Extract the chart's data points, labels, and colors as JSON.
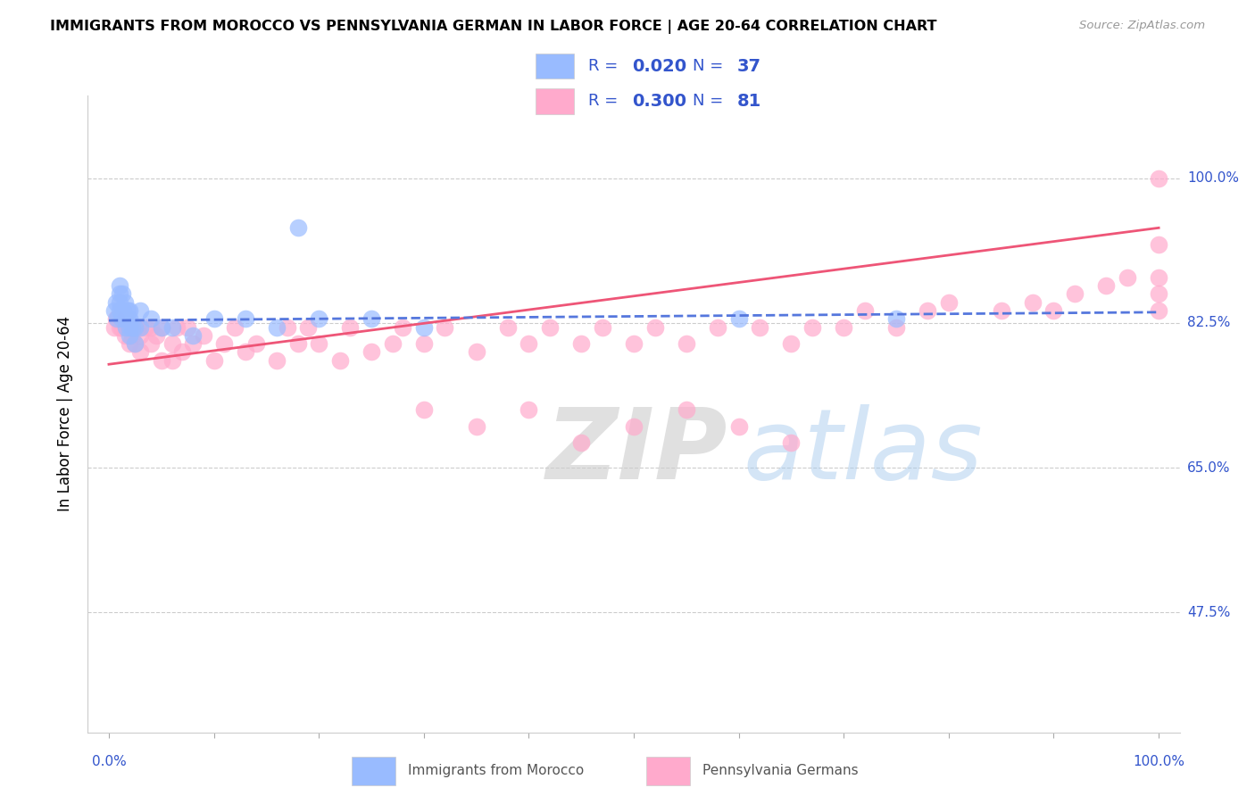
{
  "title": "IMMIGRANTS FROM MOROCCO VS PENNSYLVANIA GERMAN IN LABOR FORCE | AGE 20-64 CORRELATION CHART",
  "source": "Source: ZipAtlas.com",
  "ylabel": "In Labor Force | Age 20-64",
  "legend_label_blue": "Immigrants from Morocco",
  "legend_label_pink": "Pennsylvania Germans",
  "R_blue": 0.02,
  "N_blue": 37,
  "R_pink": 0.3,
  "N_pink": 81,
  "color_blue_fill": "#99BBFF",
  "color_blue_edge": "#6688EE",
  "color_pink_fill": "#FFAACC",
  "color_pink_edge": "#EE6688",
  "color_blue_line": "#5577DD",
  "color_pink_line": "#EE5577",
  "color_axis_labels": "#3355CC",
  "color_legend_text": "#3355CC",
  "xlim": [
    -0.02,
    1.02
  ],
  "ylim": [
    0.33,
    1.1
  ],
  "yticks": [
    0.475,
    0.65,
    0.825,
    1.0
  ],
  "ytick_labels": [
    "47.5%",
    "65.0%",
    "82.5%",
    "100.0%"
  ],
  "xtick_positions": [
    0.0,
    0.1,
    0.2,
    0.3,
    0.4,
    0.5,
    0.6,
    0.7,
    0.8,
    0.9,
    1.0
  ],
  "watermark_zip": "ZIP",
  "watermark_atlas": "atlas",
  "blue_x": [
    0.005,
    0.007,
    0.008,
    0.01,
    0.01,
    0.01,
    0.01,
    0.012,
    0.013,
    0.014,
    0.015,
    0.015,
    0.016,
    0.018,
    0.018,
    0.02,
    0.02,
    0.02,
    0.02,
    0.022,
    0.025,
    0.025,
    0.03,
    0.03,
    0.04,
    0.05,
    0.06,
    0.08,
    0.1,
    0.13,
    0.16,
    0.2,
    0.25,
    0.3,
    0.6,
    0.75,
    0.18
  ],
  "blue_y": [
    0.84,
    0.85,
    0.83,
    0.86,
    0.87,
    0.84,
    0.85,
    0.83,
    0.86,
    0.84,
    0.85,
    0.83,
    0.82,
    0.84,
    0.83,
    0.84,
    0.83,
    0.82,
    0.81,
    0.82,
    0.82,
    0.8,
    0.84,
    0.82,
    0.83,
    0.82,
    0.82,
    0.81,
    0.83,
    0.83,
    0.82,
    0.83,
    0.83,
    0.82,
    0.83,
    0.83,
    0.94
  ],
  "pink_x": [
    0.005,
    0.007,
    0.01,
    0.012,
    0.015,
    0.015,
    0.018,
    0.02,
    0.02,
    0.022,
    0.025,
    0.028,
    0.03,
    0.03,
    0.035,
    0.04,
    0.04,
    0.045,
    0.05,
    0.05,
    0.06,
    0.06,
    0.065,
    0.07,
    0.075,
    0.08,
    0.09,
    0.1,
    0.11,
    0.12,
    0.13,
    0.14,
    0.16,
    0.17,
    0.18,
    0.19,
    0.2,
    0.22,
    0.23,
    0.25,
    0.27,
    0.28,
    0.3,
    0.32,
    0.35,
    0.38,
    0.4,
    0.42,
    0.45,
    0.47,
    0.5,
    0.52,
    0.55,
    0.58,
    0.62,
    0.65,
    0.67,
    0.7,
    0.72,
    0.75,
    0.78,
    0.8,
    0.85,
    0.88,
    0.9,
    0.92,
    0.95,
    0.97,
    1.0,
    1.0,
    1.0,
    1.0,
    1.0,
    0.3,
    0.35,
    0.4,
    0.45,
    0.5,
    0.55,
    0.6,
    0.65
  ],
  "pink_y": [
    0.82,
    0.83,
    0.82,
    0.82,
    0.81,
    0.83,
    0.82,
    0.8,
    0.82,
    0.81,
    0.8,
    0.82,
    0.79,
    0.81,
    0.82,
    0.8,
    0.82,
    0.81,
    0.78,
    0.82,
    0.78,
    0.8,
    0.82,
    0.79,
    0.82,
    0.8,
    0.81,
    0.78,
    0.8,
    0.82,
    0.79,
    0.8,
    0.78,
    0.82,
    0.8,
    0.82,
    0.8,
    0.78,
    0.82,
    0.79,
    0.8,
    0.82,
    0.8,
    0.82,
    0.79,
    0.82,
    0.8,
    0.82,
    0.8,
    0.82,
    0.8,
    0.82,
    0.8,
    0.82,
    0.82,
    0.8,
    0.82,
    0.82,
    0.84,
    0.82,
    0.84,
    0.85,
    0.84,
    0.85,
    0.84,
    0.86,
    0.87,
    0.88,
    0.92,
    1.0,
    0.88,
    0.86,
    0.84,
    0.72,
    0.7,
    0.72,
    0.68,
    0.7,
    0.72,
    0.7,
    0.68
  ],
  "blue_trend_x": [
    0.0,
    1.0
  ],
  "blue_trend_y": [
    0.828,
    0.838
  ],
  "pink_trend_x": [
    0.0,
    1.0
  ],
  "pink_trend_y": [
    0.775,
    0.94
  ]
}
